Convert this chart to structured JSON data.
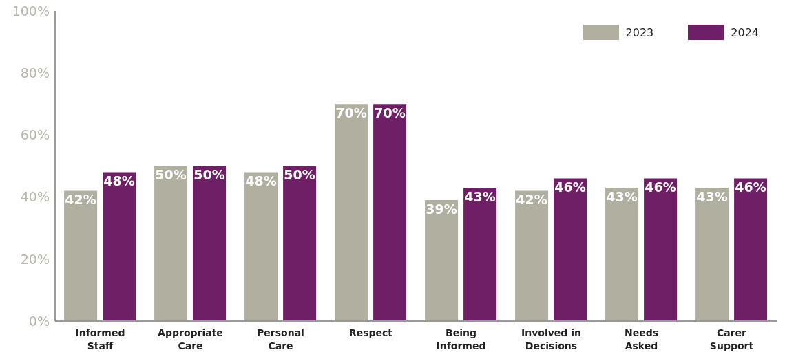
{
  "chart_data": {
    "type": "bar",
    "categories": [
      "Informed Staff",
      "Appropriate Care",
      "Personal Care",
      "Respect",
      "Being Informed",
      "Involved in Decisions",
      "Needs Asked",
      "Carer Support"
    ],
    "series": [
      {
        "name": "2023",
        "color": "#b0afa0",
        "values": [
          42,
          50,
          48,
          70,
          39,
          42,
          43,
          43
        ],
        "value_labels": [
          "42%",
          "50%",
          "48%",
          "70%",
          "39%",
          "42%",
          "43%",
          "43%"
        ]
      },
      {
        "name": "2024",
        "color": "#6e1f66",
        "values": [
          48,
          50,
          50,
          70,
          43,
          46,
          46,
          46
        ],
        "value_labels": [
          "48%",
          "50%",
          "50%",
          "70%",
          "43%",
          "46%",
          "46%",
          "46%"
        ]
      }
    ],
    "ylim": [
      0,
      100
    ],
    "yticks": [
      {
        "value": 0,
        "label": "0%"
      },
      {
        "value": 20,
        "label": "20%"
      },
      {
        "value": 40,
        "label": "40%"
      },
      {
        "value": 60,
        "label": "60%"
      },
      {
        "value": 80,
        "label": "80%"
      },
      {
        "value": 100,
        "label": "100%"
      }
    ],
    "grid": false,
    "legend": "top right"
  }
}
